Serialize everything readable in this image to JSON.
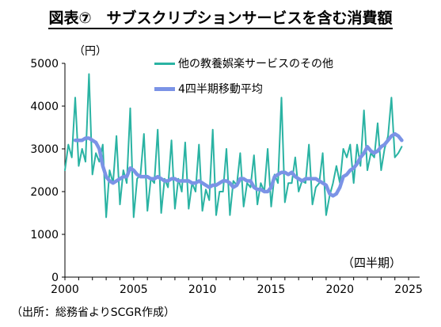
{
  "title": "図表⑦　サブスクリプションサービスを含む消費額",
  "unit_label": "（円）",
  "period_label": "（四半期）",
  "source": "（出所：総務省よりSCGR作成）",
  "chart_data": {
    "type": "line",
    "xlim": [
      2000,
      2025.8
    ],
    "ylim": [
      0,
      5000
    ],
    "x_ticks": [
      "2000",
      "2005",
      "2010",
      "2015",
      "2020",
      "2025"
    ],
    "y_ticks": [
      "0",
      "1000",
      "2000",
      "3000",
      "4000",
      "5000"
    ],
    "grid": false,
    "legend_position": "top",
    "series": [
      {
        "name": "他の教養娯楽サービスのその他",
        "color": "#2ab3a3",
        "x_start": 2000.0,
        "x_step": 0.25,
        "values": [
          2500,
          3100,
          2800,
          4200,
          2600,
          3000,
          2700,
          4750,
          2400,
          2900,
          2700,
          3100,
          1400,
          2500,
          2200,
          3300,
          1700,
          2500,
          2200,
          3950,
          1400,
          2300,
          2400,
          3350,
          1550,
          2300,
          2200,
          3450,
          1500,
          2300,
          2100,
          3200,
          1600,
          2300,
          2000,
          3150,
          1600,
          2200,
          2000,
          3100,
          1550,
          2050,
          1800,
          3450,
          1450,
          2000,
          2000,
          3000,
          1450,
          2250,
          2150,
          2900,
          1650,
          2200,
          2100,
          2850,
          1700,
          2200,
          2000,
          3000,
          1650,
          2400,
          2200,
          4200,
          1750,
          2200,
          2200,
          2800,
          2000,
          2250,
          2200,
          3100,
          1700,
          2100,
          2200,
          2900,
          1450,
          1900,
          2200,
          2600,
          2200,
          3000,
          2800,
          3100,
          2200,
          3100,
          2600,
          3900,
          2500,
          2900,
          2800,
          3600,
          2500,
          3000,
          3300,
          4200,
          2800,
          2900,
          3050
        ]
      },
      {
        "name": "4四半期移動平均",
        "color": "#7b93e6",
        "x_start": 2000.75,
        "x_step": 0.25,
        "values": [
          3200,
          3200,
          3200,
          3250,
          3250,
          3200,
          3150,
          3000,
          2600,
          2350,
          2250,
          2200,
          2250,
          2300,
          2350,
          2350,
          2550,
          2500,
          2400,
          2350,
          2350,
          2350,
          2300,
          2300,
          2350,
          2300,
          2250,
          2250,
          2300,
          2300,
          2250,
          2250,
          2250,
          2250,
          2200,
          2200,
          2250,
          2200,
          2150,
          2100,
          2150,
          2150,
          2200,
          2250,
          2250,
          2200,
          2100,
          2150,
          2300,
          2300,
          2250,
          2250,
          2100,
          2050,
          2050,
          2000,
          2000,
          2100,
          2350,
          2400,
          2450,
          2450,
          2400,
          2450,
          2350,
          2300,
          2250,
          2300,
          2300,
          2300,
          2300,
          2250,
          2200,
          2150,
          1950,
          1900,
          1950,
          2100,
          2350,
          2400,
          2500,
          2550,
          2650,
          2800,
          2900,
          3050,
          2950,
          2900,
          2950,
          3050,
          3100,
          3200,
          3300,
          3350,
          3300,
          3200
        ]
      }
    ]
  }
}
